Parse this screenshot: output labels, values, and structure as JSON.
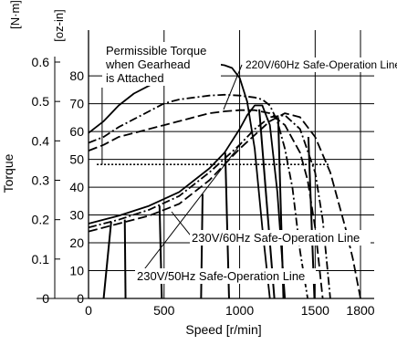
{
  "chart_data": {
    "type": "line",
    "title": "",
    "xlabel": "Speed  [r/min]",
    "ylabel": "Torque",
    "unit_left": "[N·m]",
    "unit_right": "[oz-in]",
    "xlim": [
      0,
      1800
    ],
    "x_ticks": [
      0,
      500,
      1000,
      1500,
      1800
    ],
    "x_tick_labels": [
      "0",
      "500",
      "1000",
      "1500",
      "1800"
    ],
    "ylim": [
      0,
      0.6
    ],
    "y_ticks_nm": [
      0,
      0.1,
      0.2,
      0.3,
      0.4,
      0.5,
      0.6
    ],
    "y_tick_labels_nm": [
      "0",
      "0.1",
      "0.2",
      "0.3",
      "0.4",
      "0.5",
      "0.6"
    ],
    "y_ticks_ozin": [
      0,
      10,
      20,
      30,
      40,
      50,
      60,
      70,
      80
    ],
    "y_tick_labels_ozin": [
      "0",
      "10",
      "20",
      "30",
      "40",
      "50",
      "60",
      "70",
      "80"
    ],
    "grid": true,
    "permissible_torque_nm": 0.34,
    "annotations": {
      "permissible": [
        "Permissible Torque",
        "when Gearhead",
        "is Attached"
      ],
      "line_220": "220V/60Hz Safe-Operation Line",
      "line_230_60": "230V/60Hz Safe-Operation Line",
      "line_230_50": "230V/50Hz Safe-Operation Line"
    },
    "series": [
      {
        "style": "solid",
        "x": [
          0,
          100,
          200,
          300,
          400,
          500,
          600,
          700,
          800,
          850,
          900,
          950,
          1000,
          1050,
          1100,
          1150,
          1200
        ],
        "y": [
          0.42,
          0.45,
          0.49,
          0.52,
          0.54,
          0.56,
          0.575,
          0.585,
          0.595,
          0.595,
          0.592,
          0.585,
          0.56,
          0.5,
          0.38,
          0.18,
          0.0
        ]
      },
      {
        "style": "dash-dot",
        "x": [
          0,
          100,
          200,
          300,
          400,
          500,
          600,
          700,
          800,
          900,
          1000,
          1100,
          1150,
          1200,
          1250,
          1300,
          1350,
          1400,
          1450
        ],
        "y": [
          0.395,
          0.41,
          0.435,
          0.455,
          0.475,
          0.495,
          0.505,
          0.51,
          0.515,
          0.517,
          0.515,
          0.51,
          0.505,
          0.49,
          0.45,
          0.38,
          0.28,
          0.12,
          0.0
        ]
      },
      {
        "style": "long-dash",
        "x": [
          0,
          100,
          200,
          300,
          400,
          500,
          600,
          700,
          800,
          900,
          1000,
          1100,
          1200,
          1300,
          1400,
          1450,
          1500,
          1550
        ],
        "y": [
          0.375,
          0.39,
          0.41,
          0.42,
          0.43,
          0.44,
          0.45,
          0.46,
          0.47,
          0.475,
          0.478,
          0.478,
          0.47,
          0.44,
          0.37,
          0.3,
          0.18,
          0.0
        ]
      },
      {
        "style": "solid",
        "x": [
          0,
          200,
          400,
          600,
          800,
          900,
          1000,
          1050,
          1100,
          1150,
          1200,
          1250,
          1300
        ],
        "y": [
          0.19,
          0.21,
          0.235,
          0.27,
          0.33,
          0.37,
          0.43,
          0.465,
          0.49,
          0.49,
          0.44,
          0.27,
          0.0
        ]
      },
      {
        "style": "dash-dot",
        "x": [
          0,
          200,
          400,
          600,
          800,
          1000,
          1100,
          1200,
          1300,
          1400,
          1500,
          1550,
          1600
        ],
        "y": [
          0.18,
          0.2,
          0.225,
          0.26,
          0.32,
          0.39,
          0.43,
          0.46,
          0.465,
          0.43,
          0.32,
          0.2,
          0.0
        ]
      },
      {
        "style": "long-dash",
        "x": [
          0,
          200,
          400,
          600,
          800,
          1000,
          1200,
          1300,
          1400,
          1500,
          1600,
          1700,
          1750,
          1800
        ],
        "y": [
          0.17,
          0.19,
          0.21,
          0.24,
          0.3,
          0.38,
          0.45,
          0.47,
          0.46,
          0.41,
          0.32,
          0.18,
          0.1,
          0.0
        ]
      }
    ]
  }
}
